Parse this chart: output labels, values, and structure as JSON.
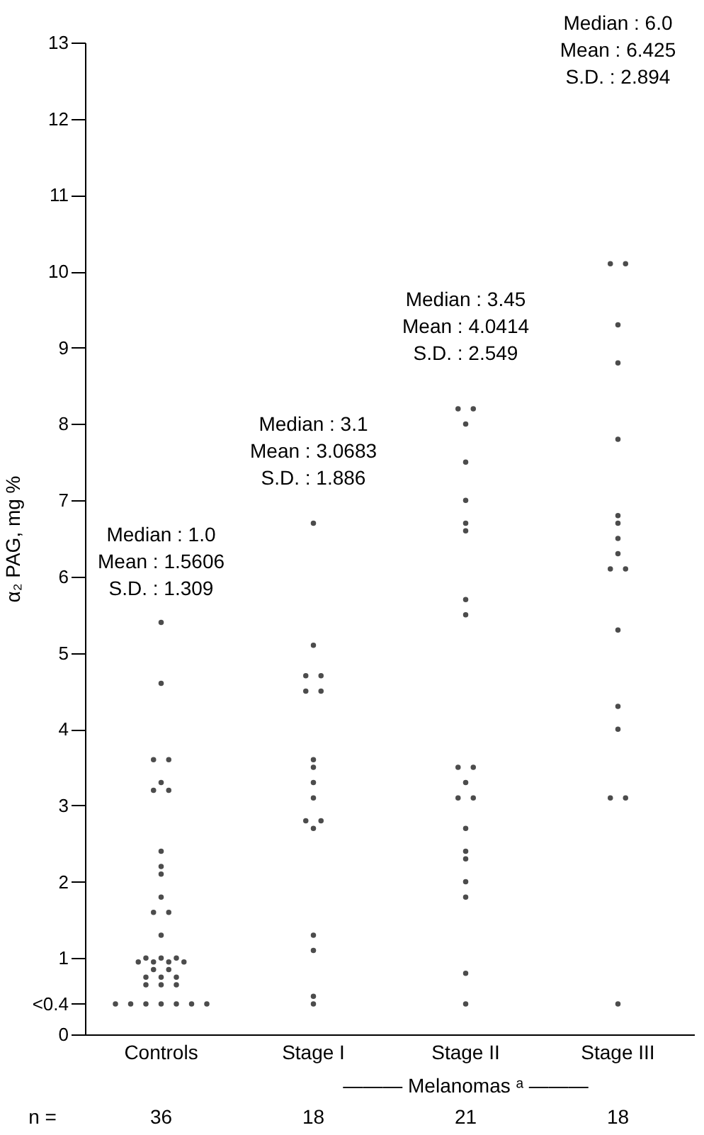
{
  "chart_data": {
    "type": "scatter",
    "ylabel": "α₂ PAG,   mg %",
    "categories": [
      "Controls",
      "Stage I",
      "Stage II",
      "Stage III"
    ],
    "series": [
      {
        "color": "#000000",
        "x": [
          "Controls",
          "Controls",
          "Controls",
          "Controls",
          "Controls",
          "Controls",
          "Controls",
          "Controls",
          "Controls",
          "Controls",
          "Controls",
          "Controls",
          "Controls",
          "Controls",
          "Controls",
          "Controls",
          "Controls",
          "Controls",
          "Controls",
          "Controls",
          "Controls",
          "Controls",
          "Controls",
          "Controls",
          "Controls",
          "Controls",
          "Controls",
          "Controls",
          "Controls",
          "Controls",
          "Controls",
          "Controls",
          "Controls",
          "Controls",
          "Controls",
          "Controls",
          "Stage I",
          "Stage I",
          "Stage I",
          "Stage I",
          "Stage I",
          "Stage I",
          "Stage I",
          "Stage I",
          "Stage I",
          "Stage I",
          "Stage I",
          "Stage I",
          "Stage I",
          "Stage I",
          "Stage I",
          "Stage I",
          "Stage I",
          "Stage II",
          "Stage II",
          "Stage II",
          "Stage II",
          "Stage II",
          "Stage II",
          "Stage II",
          "Stage II",
          "Stage II",
          "Stage II",
          "Stage II",
          "Stage II",
          "Stage II",
          "Stage II",
          "Stage II",
          "Stage II",
          "Stage II",
          "Stage II",
          "Stage II",
          "Stage II",
          "Stage II",
          "Stage III",
          "Stage III",
          "Stage III",
          "Stage III",
          "Stage III",
          "Stage III",
          "Stage III",
          "Stage III",
          "Stage III",
          "Stage III",
          "Stage III",
          "Stage III",
          "Stage III",
          "Stage III",
          "Stage III",
          "Stage III",
          "Stage III"
        ],
        "values": [
          5.4,
          4.6,
          3.6,
          3.6,
          3.3,
          3.2,
          3.2,
          2.4,
          2.2,
          2.1,
          1.8,
          1.6,
          1.6,
          1.3,
          1.0,
          1.0,
          1.0,
          0.95,
          0.95,
          0.95,
          0.95,
          0.85,
          0.85,
          0.75,
          0.75,
          0.75,
          0.65,
          0.65,
          0.65,
          0.4,
          0.4,
          0.4,
          0.4,
          0.4,
          0.4,
          0.4,
          6.7,
          5.1,
          4.7,
          4.7,
          4.5,
          4.5,
          3.6,
          3.5,
          3.3,
          3.1,
          2.8,
          2.8,
          2.7,
          1.3,
          1.1,
          0.5,
          0.4,
          8.2,
          8.2,
          8.0,
          7.5,
          7.0,
          6.7,
          6.6,
          5.7,
          5.5,
          3.5,
          3.5,
          3.3,
          3.1,
          3.1,
          2.7,
          2.4,
          2.3,
          2.0,
          1.8,
          0.8,
          0.4,
          10.1,
          10.1,
          9.3,
          8.8,
          7.8,
          6.8,
          6.7,
          6.5,
          6.3,
          6.1,
          6.1,
          5.3,
          4.3,
          4.0,
          3.1,
          3.1,
          0.4
        ]
      }
    ],
    "ylim": [
      0,
      13
    ],
    "yticks": [
      0,
      {
        "value": 0.4,
        "label": "<0.4"
      },
      1,
      2,
      3,
      4,
      5,
      6,
      7,
      8,
      9,
      10,
      11,
      12,
      13
    ],
    "marker": "circle",
    "annotations": [
      "Median : 1.0",
      "Mean : 1.5606",
      "S.D. : 1.309",
      "Median : 3.1",
      "Mean : 3.0683",
      "S.D. : 1.886",
      "Median :  3.45",
      "Mean : 4.0414",
      "S.D. : 2.549",
      "Median : 6.0",
      "Mean : 6.425",
      "S.D. : 2.894",
      "——— Melanomas ᵃ ———",
      "n =",
      "36",
      "18",
      "21",
      "18"
    ]
  }
}
